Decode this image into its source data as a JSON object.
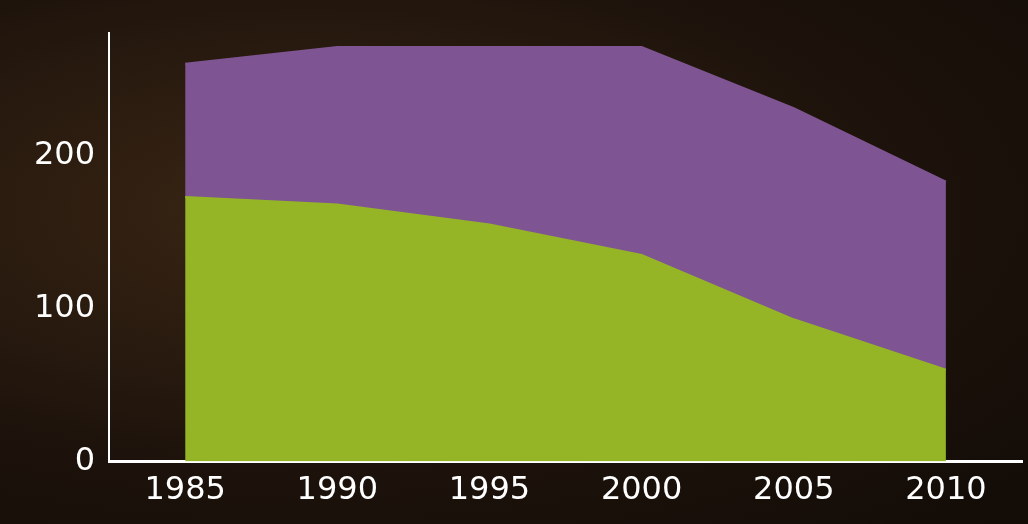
{
  "chart_data": {
    "type": "area",
    "categories": [
      "1985",
      "1990",
      "1995",
      "2000",
      "2005",
      "2010"
    ],
    "series": [
      {
        "color": "#95b526",
        "values": [
          173,
          168,
          155,
          135,
          93,
          60
        ]
      },
      {
        "color": "#7e5592",
        "values": [
          87,
          103,
          116,
          136,
          138,
          123
        ]
      }
    ],
    "stacked": true,
    "ylim": [
      0,
      280
    ],
    "yticks": [
      0,
      100,
      200
    ],
    "grid": false
  }
}
